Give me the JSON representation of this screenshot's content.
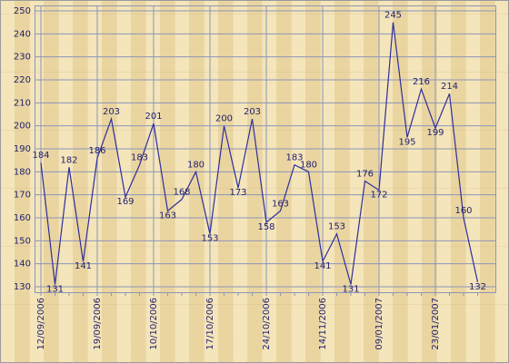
{
  "chart_data": {
    "type": "line",
    "categories": [
      "12/09/2006",
      null,
      null,
      null,
      "19/09/2006",
      null,
      null,
      null,
      "10/10/2006",
      null,
      null,
      null,
      "17/10/2006",
      null,
      null,
      null,
      "24/10/2006",
      null,
      null,
      null,
      "14/11/2006",
      null,
      null,
      null,
      "09/01/2007",
      null,
      null,
      null,
      "23/01/2007",
      null,
      null,
      null
    ],
    "values": [
      184,
      131,
      182,
      141,
      186,
      203,
      169,
      183,
      201,
      163,
      168,
      180,
      153,
      200,
      173,
      203,
      158,
      163,
      183,
      180,
      141,
      153,
      131,
      176,
      172,
      245,
      195,
      216,
      199,
      214,
      160,
      132
    ],
    "color": "#2e2e9a",
    "ylim": [
      130,
      250
    ],
    "yticks": [
      130,
      140,
      150,
      160,
      170,
      180,
      190,
      200,
      210,
      220,
      230,
      240,
      250
    ],
    "grid": true
  }
}
